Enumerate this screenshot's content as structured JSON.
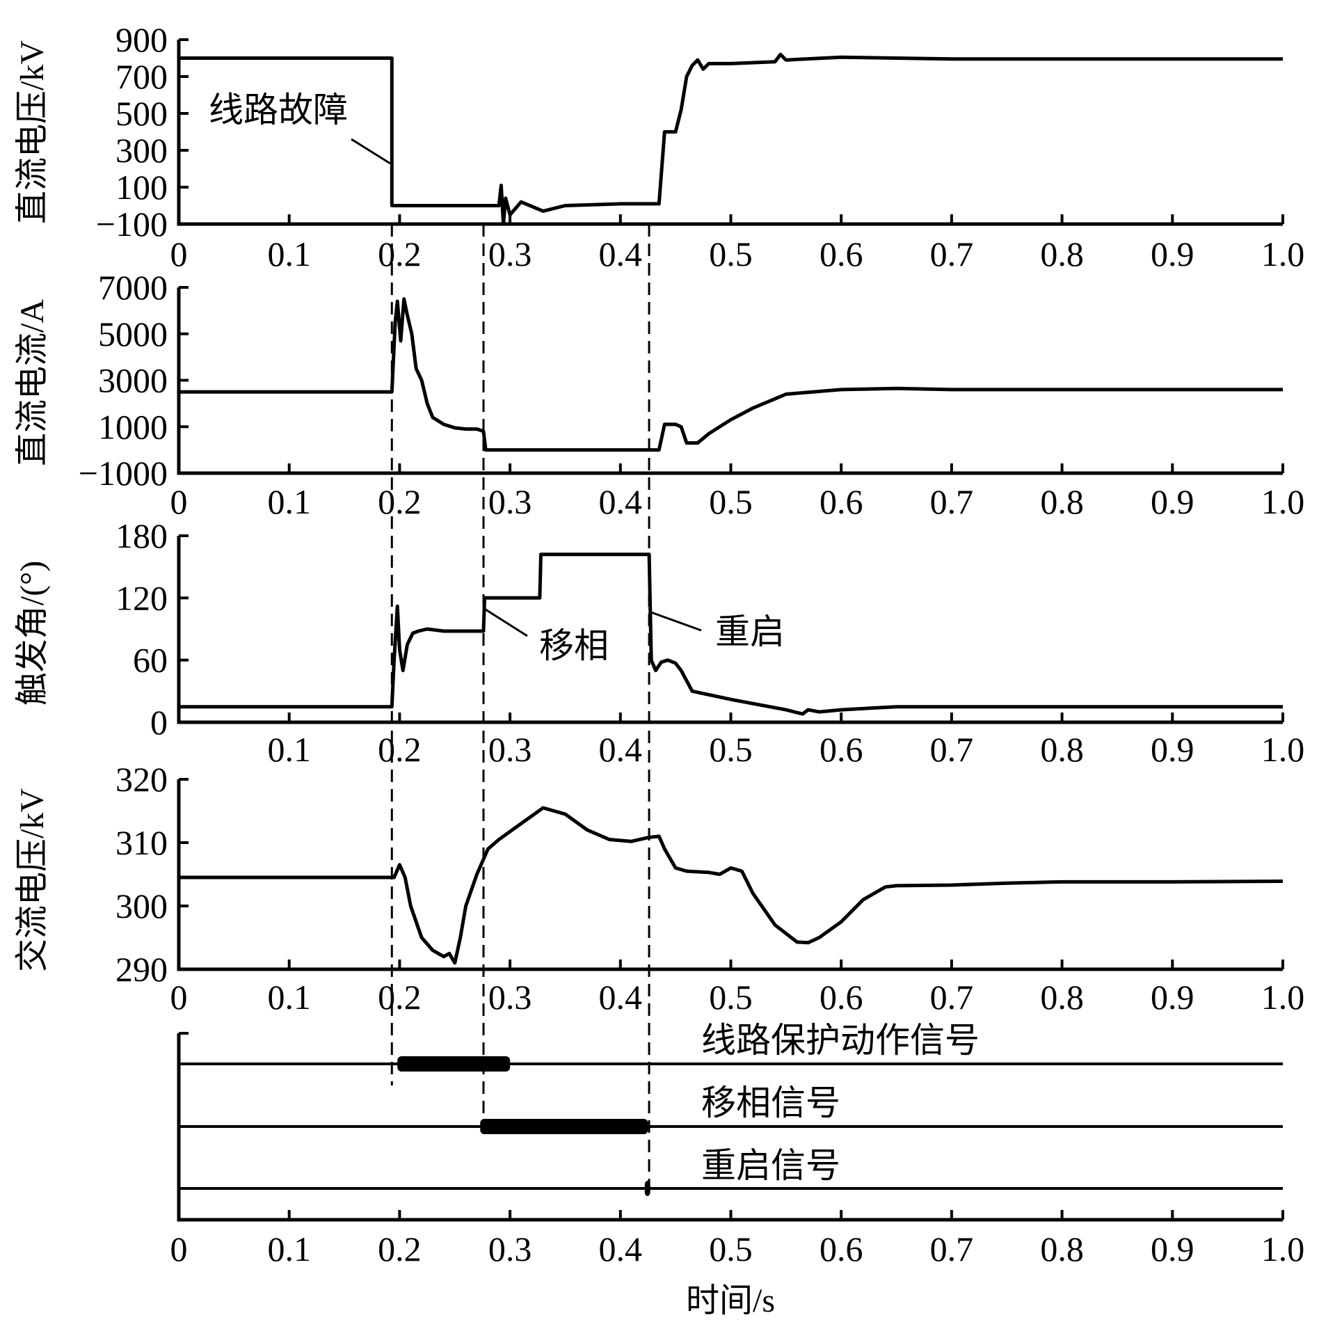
{
  "chart_data": [
    {
      "type": "line",
      "panel": 1,
      "ylabel": "直流电压/kV",
      "xlabel": "",
      "ylim": [
        -100,
        900
      ],
      "yticks": [
        -100,
        100,
        300,
        500,
        700,
        900
      ],
      "xlim": [
        0,
        1.0
      ],
      "xticks": [
        "0",
        "0.1",
        "0.2",
        "0.3",
        "0.4",
        "0.5",
        "0.6",
        "0.7",
        "0.8",
        "0.9",
        "1.0"
      ],
      "annotations": [
        {
          "text": "线路故障",
          "x": 0.193,
          "y": 300
        }
      ],
      "series": [
        {
          "name": "直流电压",
          "x": [
            0,
            0.193,
            0.193,
            0.2,
            0.29,
            0.292,
            0.294,
            0.296,
            0.3,
            0.31,
            0.33,
            0.35,
            0.4,
            0.435,
            0.44,
            0.443,
            0.45,
            0.455,
            0.46,
            0.465,
            0.47,
            0.475,
            0.48,
            0.5,
            0.54,
            0.545,
            0.55,
            0.6,
            0.65,
            0.7,
            0.8,
            0.9,
            1.0
          ],
          "y": [
            800,
            800,
            0,
            0,
            0,
            110,
            -100,
            40,
            -50,
            20,
            -30,
            0,
            10,
            10,
            400,
            400,
            400,
            520,
            700,
            760,
            790,
            740,
            770,
            770,
            780,
            820,
            790,
            805,
            800,
            795,
            795,
            795,
            795
          ]
        }
      ]
    },
    {
      "type": "line",
      "panel": 2,
      "ylabel": "直流电流/A",
      "xlabel": "",
      "ylim": [
        -1000,
        7000
      ],
      "yticks": [
        -1000,
        1000,
        3000,
        5000,
        7000
      ],
      "xlim": [
        0,
        1.0
      ],
      "xticks": [
        "0",
        "0.1",
        "0.2",
        "0.3",
        "0.4",
        "0.5",
        "0.6",
        "0.7",
        "0.8",
        "0.9",
        "1.0"
      ],
      "series": [
        {
          "name": "直流电流",
          "x": [
            0,
            0.193,
            0.196,
            0.198,
            0.201,
            0.204,
            0.207,
            0.211,
            0.215,
            0.22,
            0.225,
            0.23,
            0.24,
            0.25,
            0.26,
            0.27,
            0.276,
            0.278,
            0.3,
            0.35,
            0.4,
            0.43,
            0.435,
            0.44,
            0.45,
            0.455,
            0.46,
            0.47,
            0.48,
            0.5,
            0.52,
            0.54,
            0.55,
            0.6,
            0.65,
            0.7,
            0.8,
            0.9,
            1.0
          ],
          "y": [
            2500,
            2500,
            5500,
            6400,
            4700,
            6500,
            5800,
            5000,
            3500,
            3000,
            2000,
            1400,
            1100,
            950,
            900,
            900,
            800,
            0,
            0,
            0,
            0,
            0,
            0,
            1100,
            1100,
            1000,
            300,
            300,
            700,
            1300,
            1800,
            2200,
            2400,
            2600,
            2650,
            2600,
            2600,
            2600,
            2600
          ]
        }
      ]
    },
    {
      "type": "line",
      "panel": 3,
      "ylabel": "触发角/(°)",
      "xlabel": "",
      "ylim": [
        0,
        180
      ],
      "yticks": [
        0,
        60,
        120,
        180
      ],
      "xlim": [
        0,
        1.0
      ],
      "xticks": [
        "0.1",
        "0.2",
        "0.3",
        "0.4",
        "0.5",
        "0.6",
        "0.7",
        "0.8",
        "0.9",
        "1.0"
      ],
      "annotations": [
        {
          "text": "移相",
          "x": 0.276,
          "y": 110
        },
        {
          "text": "重启",
          "x": 0.426,
          "y": 100
        }
      ],
      "series": [
        {
          "name": "触发角",
          "x": [
            0,
            0.193,
            0.195,
            0.198,
            0.2,
            0.203,
            0.207,
            0.212,
            0.217,
            0.225,
            0.24,
            0.26,
            0.276,
            0.277,
            0.327,
            0.328,
            0.426,
            0.428,
            0.432,
            0.437,
            0.443,
            0.45,
            0.455,
            0.465,
            0.5,
            0.55,
            0.565,
            0.57,
            0.58,
            0.6,
            0.65,
            0.7,
            0.8,
            0.9,
            1.0
          ],
          "y": [
            15,
            15,
            60,
            112,
            70,
            50,
            75,
            86,
            88,
            90,
            88,
            88,
            88,
            120,
            120,
            162,
            162,
            60,
            50,
            58,
            60,
            57,
            50,
            30,
            22,
            12,
            8,
            12,
            10,
            12,
            15,
            15,
            15,
            15,
            15
          ]
        }
      ]
    },
    {
      "type": "line",
      "panel": 4,
      "ylabel": "交流电压/kV",
      "xlabel": "",
      "ylim": [
        290,
        320
      ],
      "yticks": [
        290,
        300,
        310,
        320
      ],
      "xlim": [
        0,
        1.0
      ],
      "xticks": [
        "0",
        "0.1",
        "0.2",
        "0.3",
        "0.4",
        "0.5",
        "0.6",
        "0.7",
        "0.8",
        "0.9",
        "1.0"
      ],
      "series": [
        {
          "name": "交流电压",
          "x": [
            0,
            0.195,
            0.2,
            0.205,
            0.21,
            0.22,
            0.23,
            0.24,
            0.245,
            0.25,
            0.255,
            0.26,
            0.27,
            0.28,
            0.29,
            0.31,
            0.33,
            0.35,
            0.37,
            0.39,
            0.41,
            0.425,
            0.435,
            0.44,
            0.45,
            0.46,
            0.48,
            0.49,
            0.5,
            0.51,
            0.52,
            0.54,
            0.56,
            0.57,
            0.58,
            0.6,
            0.62,
            0.64,
            0.65,
            0.7,
            0.75,
            0.8,
            0.9,
            1.0
          ],
          "y": [
            304.5,
            304.5,
            306.5,
            304.5,
            300,
            295,
            293,
            292,
            292.5,
            291,
            295,
            300,
            305,
            309,
            310.5,
            313,
            315.5,
            314.5,
            312,
            310.5,
            310.2,
            310.8,
            311,
            309,
            306,
            305.5,
            305.3,
            305,
            306,
            305.5,
            302,
            297,
            294.3,
            294.2,
            295,
            297.5,
            301,
            303,
            303.2,
            303.3,
            303.6,
            303.8,
            303.8,
            303.9
          ]
        }
      ]
    },
    {
      "type": "timeline",
      "panel": 5,
      "xlabel": "时间/s",
      "xlim": [
        0,
        1.0
      ],
      "xticks": [
        "0",
        "0.1",
        "0.2",
        "0.3",
        "0.4",
        "0.5",
        "0.6",
        "0.7",
        "0.8",
        "0.9",
        "1.0"
      ],
      "signals": [
        {
          "name": "线路保护动作信号",
          "on": 0.198,
          "off": 0.3
        },
        {
          "name": "移相信号",
          "on": 0.273,
          "off": 0.425
        },
        {
          "name": "重启信号",
          "on": 0.422,
          "off": 0.426
        }
      ]
    }
  ],
  "event_lines": [
    0.193,
    0.276,
    0.426
  ],
  "labels": {
    "p1_ylabel": "直流电压/kV",
    "p2_ylabel": "直流电流/A",
    "p3_ylabel": "触发角/(°)",
    "p4_ylabel": "交流电压/kV",
    "xlabel": "时间/s",
    "annot_fault": "线路故障",
    "annot_shift": "移相",
    "annot_restart": "重启",
    "sig1": "线路保护动作信号",
    "sig2": "移相信号",
    "sig3": "重启信号"
  }
}
